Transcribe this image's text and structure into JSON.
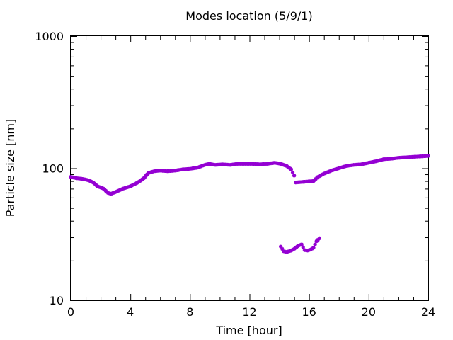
{
  "chart_data": {
    "type": "scatter",
    "title": "Modes location (5/9/1)",
    "xlabel": "Time [hour]",
    "ylabel": "Particle size [nm]",
    "xlim": [
      0,
      24
    ],
    "ylim": [
      10,
      1000
    ],
    "yscale": "log",
    "grid": false,
    "xticks": [
      0,
      4,
      8,
      12,
      16,
      20,
      24
    ],
    "xtick_labels": [
      "0",
      "4",
      "8",
      "12",
      "16",
      "20",
      "24"
    ],
    "yticks": [
      10,
      100,
      1000
    ],
    "ytick_labels": [
      "10",
      "100",
      "1000"
    ],
    "marker_color": "#9400d3",
    "series": [
      {
        "values": [
          [
            0.0,
            86
          ],
          [
            0.4,
            84
          ],
          [
            0.8,
            83
          ],
          [
            1.2,
            81
          ],
          [
            1.5,
            78
          ],
          [
            1.8,
            73
          ],
          [
            2.2,
            70
          ],
          [
            2.5,
            65
          ],
          [
            2.7,
            64
          ],
          [
            3.0,
            66
          ],
          [
            3.5,
            70
          ],
          [
            4.0,
            73
          ],
          [
            4.5,
            78
          ],
          [
            4.9,
            84
          ],
          [
            5.2,
            92
          ],
          [
            5.6,
            95
          ],
          [
            6.0,
            96
          ],
          [
            6.5,
            95
          ],
          [
            7.0,
            96
          ],
          [
            7.5,
            98
          ],
          [
            8.0,
            99
          ],
          [
            8.5,
            101
          ],
          [
            9.0,
            106
          ],
          [
            9.3,
            108
          ],
          [
            9.7,
            106
          ],
          [
            10.2,
            107
          ],
          [
            10.7,
            106
          ],
          [
            11.2,
            108
          ],
          [
            11.7,
            108
          ],
          [
            12.2,
            108
          ],
          [
            12.7,
            107
          ],
          [
            13.2,
            108
          ],
          [
            13.7,
            110
          ],
          [
            14.1,
            108
          ],
          [
            14.5,
            104
          ],
          [
            14.8,
            98
          ],
          [
            15.0,
            88
          ],
          [
            15.1,
            78
          ],
          [
            16.3,
            80
          ],
          [
            16.6,
            86
          ],
          [
            17.0,
            91
          ],
          [
            17.5,
            96
          ],
          [
            18.0,
            100
          ],
          [
            18.5,
            104
          ],
          [
            19.0,
            106
          ],
          [
            19.5,
            107
          ],
          [
            20.0,
            110
          ],
          [
            20.5,
            113
          ],
          [
            21.0,
            117
          ],
          [
            21.5,
            118
          ],
          [
            22.0,
            120
          ],
          [
            22.5,
            121
          ],
          [
            23.0,
            122
          ],
          [
            23.5,
            123
          ],
          [
            24.0,
            124
          ]
        ]
      },
      {
        "values": [
          [
            14.1,
            25.5
          ],
          [
            14.3,
            23.5
          ],
          [
            14.5,
            23.2
          ],
          [
            14.8,
            23.8
          ],
          [
            15.0,
            24.5
          ],
          [
            15.3,
            26
          ],
          [
            15.5,
            26.5
          ],
          [
            15.7,
            24
          ],
          [
            15.9,
            23.8
          ],
          [
            16.1,
            24.2
          ],
          [
            16.3,
            25
          ],
          [
            16.5,
            28
          ],
          [
            16.7,
            29.5
          ]
        ]
      }
    ]
  }
}
